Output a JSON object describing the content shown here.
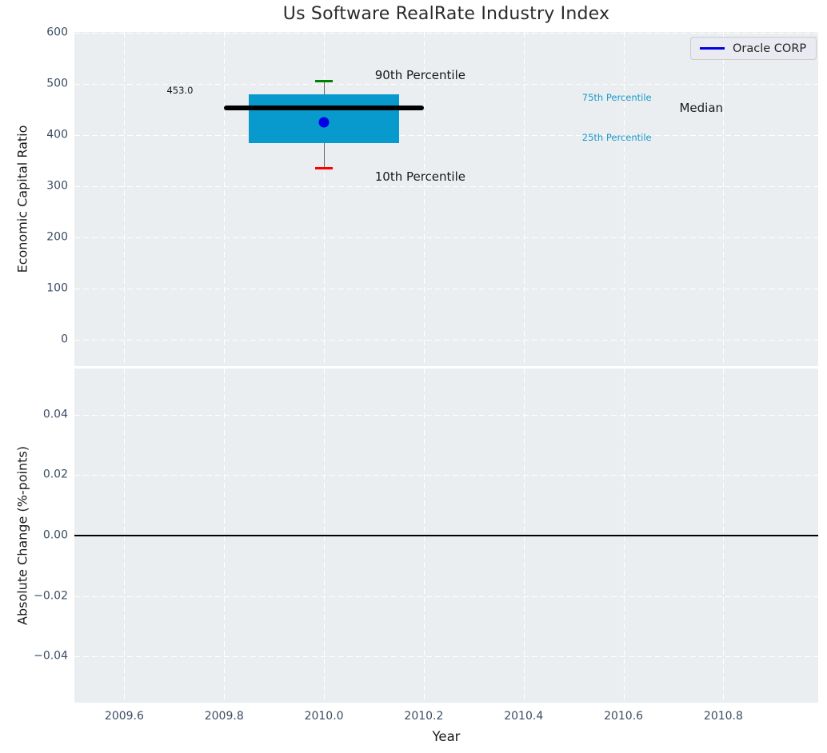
{
  "legend": {
    "label": "Oracle CORP",
    "line_color": "#0000e0"
  },
  "chart_data": {
    "type": "boxplot",
    "title": "Us Software RealRate Industry Index",
    "xlabel": "Year",
    "legend_position": "upper right",
    "grid": true,
    "colors": {
      "plot_bg": "#eaeef0",
      "grid": "#ffffff",
      "box_fill": "#099acd",
      "median_line": "#000000",
      "whisker": "#666666",
      "cap_90th": "#008000",
      "cap_10th": "#ff0000",
      "company_point": "#0000e6",
      "percentile_text": "#1a9acb",
      "annotation_text": "#1a1a1a",
      "tick_text": "#3b4d63"
    },
    "x_axis": {
      "min": 2009.5,
      "max": 2010.99,
      "ticks": [
        {
          "value": 2009.6,
          "label": "2009.6"
        },
        {
          "value": 2009.8,
          "label": "2009.8"
        },
        {
          "value": 2010.0,
          "label": "2010.0"
        },
        {
          "value": 2010.2,
          "label": "2010.2"
        },
        {
          "value": 2010.4,
          "label": "2010.4"
        },
        {
          "value": 2010.6,
          "label": "2010.6"
        },
        {
          "value": 2010.8,
          "label": "2010.8"
        }
      ]
    },
    "top_panel": {
      "ylabel": "Economic Capital Ratio",
      "ylim": [
        -52,
        602
      ],
      "yticks": [
        {
          "value": 0,
          "label": "0"
        },
        {
          "value": 100,
          "label": "100"
        },
        {
          "value": 200,
          "label": "200"
        },
        {
          "value": 300,
          "label": "300"
        },
        {
          "value": 400,
          "label": "400"
        },
        {
          "value": 500,
          "label": "500"
        },
        {
          "value": 600,
          "label": "600"
        }
      ],
      "box": {
        "year": 2010.0,
        "p10": 335,
        "p25": 385,
        "median": 453,
        "p75": 480,
        "p90": 505,
        "box_x0": 2009.85,
        "box_x1": 2010.15,
        "median_x0": 2009.8,
        "median_x1": 2010.2,
        "cap_halfwidth": 0.017
      },
      "company_point": {
        "name": "Oracle CORP",
        "year": 2010.0,
        "value": 425
      },
      "annotations": [
        {
          "text": "453.0",
          "x": 2009.685,
          "y": 488,
          "size": 11.5,
          "color": "#1a1a1a"
        },
        {
          "text": "90th Percentile",
          "x": 2010.102,
          "y": 517,
          "size": 15,
          "color": "#1a1a1a"
        },
        {
          "text": "10th Percentile",
          "x": 2010.102,
          "y": 319,
          "size": 15,
          "color": "#1a1a1a"
        },
        {
          "text": "75th Percentile",
          "x": 2010.517,
          "y": 474,
          "size": 11.5,
          "color": "#1a9acb"
        },
        {
          "text": "25th Percentile",
          "x": 2010.517,
          "y": 396,
          "size": 11.5,
          "color": "#1a9acb"
        },
        {
          "text": "Median",
          "x": 2010.712,
          "y": 453,
          "size": 15,
          "color": "#1a1a1a"
        }
      ]
    },
    "bottom_panel": {
      "ylabel": "Absolute Change (%-points)",
      "ylim": [
        -0.0553,
        0.0553
      ],
      "yticks": [
        {
          "value": 0.04,
          "label": "0.04"
        },
        {
          "value": 0.02,
          "label": "0.02"
        },
        {
          "value": 0.0,
          "label": "0.00"
        },
        {
          "value": -0.02,
          "label": "−0.02"
        },
        {
          "value": -0.04,
          "label": "−0.04"
        }
      ],
      "zero_line": 0.0,
      "series": []
    }
  }
}
